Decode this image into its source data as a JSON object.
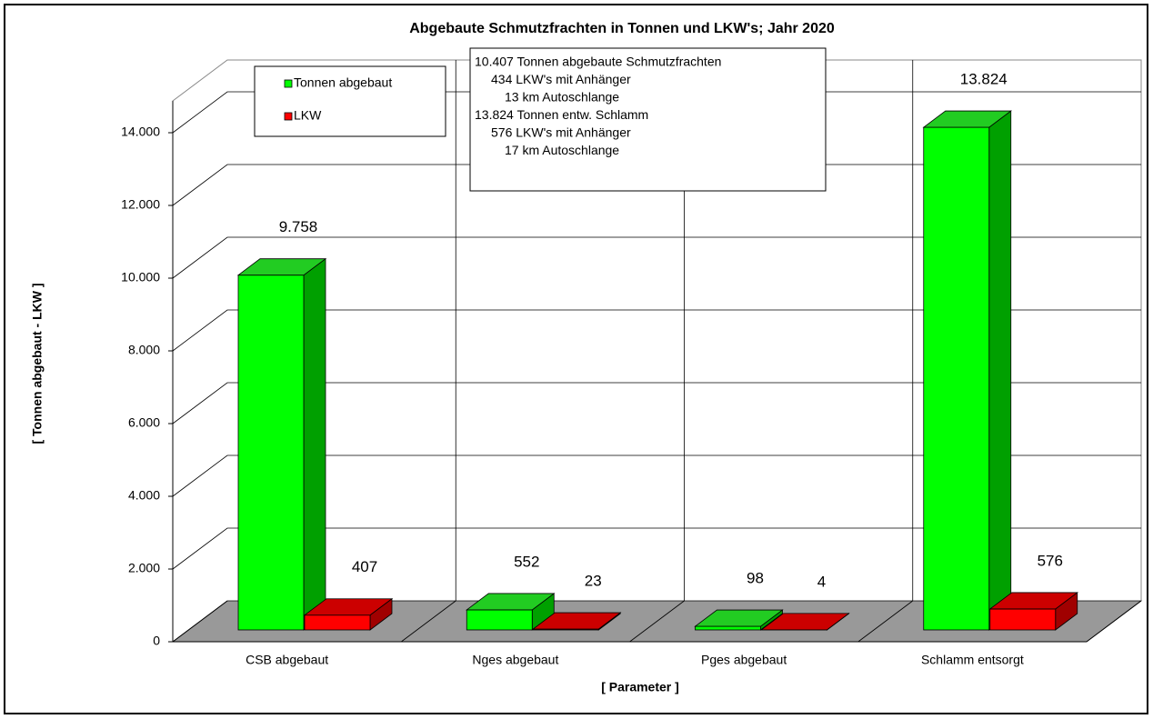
{
  "chart_data": {
    "type": "bar3d",
    "title": "Abgebaute Schmutzfrachten in Tonnen und LKW's; Jahr 2020",
    "y_axis_label": "[ Tonnen abgebaut - LKW ]",
    "x_axis_label": "[ Parameter ]",
    "categories": [
      "CSB abgebaut",
      "Nges abgebaut",
      "Pges abgebaut",
      "Schlamm entsorgt"
    ],
    "series": [
      {
        "name": "Tonnen abgebaut",
        "color": "#00ff00",
        "values": [
          9758,
          552,
          98,
          13824
        ],
        "value_labels": [
          "9.758",
          "552",
          "98",
          "13.824"
        ]
      },
      {
        "name": "LKW",
        "color": "#ff0000",
        "values": [
          407,
          23,
          4,
          576
        ]
      }
    ],
    "ylim": [
      0,
      16000
    ],
    "yticks": [
      0,
      {
        "value": 2000,
        "label": "2.000"
      },
      {
        "value": 4000,
        "label": "4.000"
      },
      {
        "value": 6000,
        "label": "6.000"
      },
      {
        "value": 8000,
        "label": "8.000"
      },
      {
        "value": 10000,
        "label": "10.000"
      },
      {
        "value": 12000,
        "label": "12.000"
      },
      {
        "value": 14000,
        "label": "14.000"
      }
    ],
    "grid": true,
    "annotation": [
      "10.407 Tonnen abgebaute Schmutzfrachten",
      "434 LKW's mit Anhänger",
      "13 km Autoschlange",
      "13.824 Tonnen entw. Schlamm",
      "576 LKW's mit Anhänger",
      "17 km Autoschlange"
    ]
  }
}
